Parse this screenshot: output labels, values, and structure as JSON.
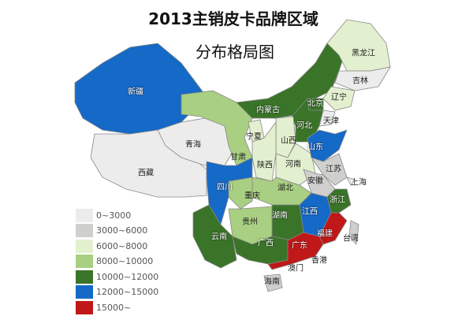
{
  "title": {
    "line1": "2013主销皮卡品牌区域",
    "line2": "分布格局图"
  },
  "legend": [
    {
      "label": "0~3000",
      "color": "#ececec"
    },
    {
      "label": "3000~6000",
      "color": "#cfcfcd"
    },
    {
      "label": "6000~8000",
      "color": "#e3f0cf"
    },
    {
      "label": "8000~10000",
      "color": "#a9cf82"
    },
    {
      "label": "10000~12000",
      "color": "#3a7428"
    },
    {
      "label": "12000~15000",
      "color": "#1569c7"
    },
    {
      "label": "15000~",
      "color": "#c01818"
    }
  ],
  "regions": [
    {
      "name": "新疆",
      "level": 5
    },
    {
      "name": "西藏",
      "level": 0
    },
    {
      "name": "青海",
      "level": 0
    },
    {
      "name": "甘肃",
      "level": 3
    },
    {
      "name": "内蒙古",
      "level": 4
    },
    {
      "name": "黑龙江",
      "level": 2
    },
    {
      "name": "吉林",
      "level": 0
    },
    {
      "name": "辽宁",
      "level": 2
    },
    {
      "name": "北京",
      "level": 4
    },
    {
      "name": "河北",
      "level": 4
    },
    {
      "name": "天津",
      "level": 0
    },
    {
      "name": "山西",
      "level": 2
    },
    {
      "name": "宁夏",
      "level": 2
    },
    {
      "name": "陕西",
      "level": 2
    },
    {
      "name": "河南",
      "level": 2
    },
    {
      "name": "山东",
      "level": 5
    },
    {
      "name": "江苏",
      "level": 1
    },
    {
      "name": "安徽",
      "level": 1
    },
    {
      "name": "上海",
      "level": 0
    },
    {
      "name": "湖北",
      "level": 3
    },
    {
      "name": "重庆",
      "level": 3
    },
    {
      "name": "四川",
      "level": 5
    },
    {
      "name": "浙江",
      "level": 4
    },
    {
      "name": "江西",
      "level": 5
    },
    {
      "name": "福建",
      "level": 6
    },
    {
      "name": "湖南",
      "level": 4
    },
    {
      "name": "贵州",
      "level": 3
    },
    {
      "name": "云南",
      "level": 4
    },
    {
      "name": "广西",
      "level": 4
    },
    {
      "name": "广东",
      "level": 6
    },
    {
      "name": "海南",
      "level": 1
    },
    {
      "name": "台湾",
      "level": 1
    },
    {
      "name": "香港",
      "level": null
    },
    {
      "name": "澳门",
      "level": null
    }
  ]
}
